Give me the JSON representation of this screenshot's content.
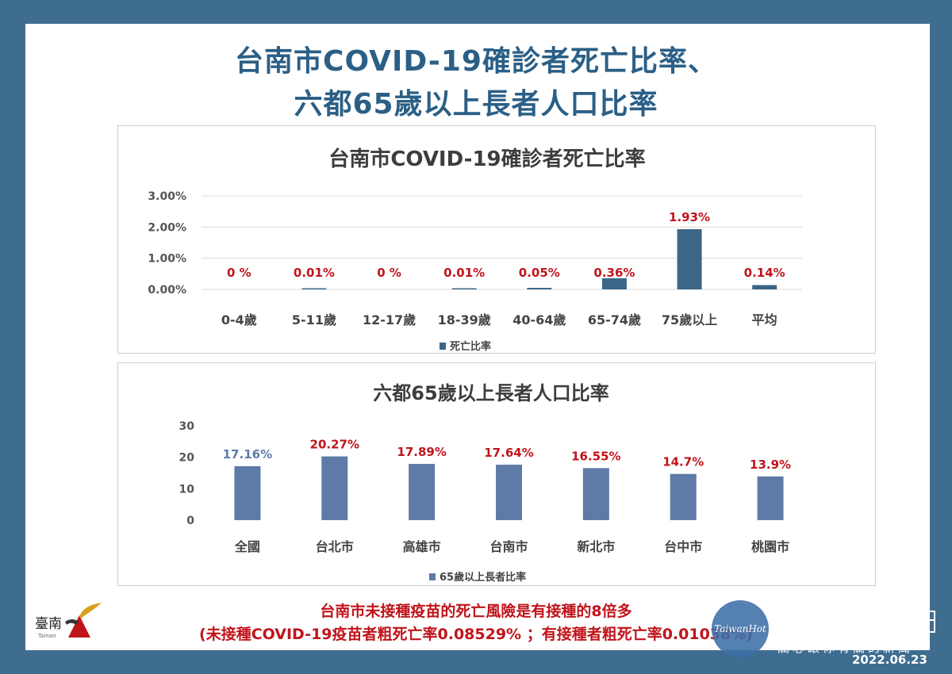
{
  "header": {
    "title_line1": "台南市COVID-19確診者死亡比率、",
    "title_line2": "六都65歲以上長者人口比率"
  },
  "chart_data": [
    {
      "type": "bar",
      "title": "台南市COVID-19確診者死亡比率",
      "categories": [
        "0-4歲",
        "5-11歲",
        "12-17歲",
        "18-39歲",
        "40-64歲",
        "65-74歲",
        "75歲以上",
        "平均"
      ],
      "series": [
        {
          "name": "死亡比率",
          "values": [
            0,
            0.01,
            0,
            0.01,
            0.05,
            0.36,
            1.93,
            0.14
          ]
        }
      ],
      "data_labels": [
        "0 %",
        "0.01%",
        "0 %",
        "0.01%",
        "0.05%",
        "0.36%",
        "1.93%",
        "0.14%"
      ],
      "yticks": [
        "3.00%",
        "2.00%",
        "1.00%",
        "0.00%"
      ],
      "ylim": [
        0,
        3
      ],
      "grid": true,
      "legend": "bottom",
      "bar_color": "#3c6687",
      "label_color": "#c0141b"
    },
    {
      "type": "bar",
      "title": "六都65歲以上長者人口比率",
      "categories": [
        "全國",
        "台北市",
        "高雄市",
        "台南市",
        "新北市",
        "台中市",
        "桃園市"
      ],
      "series": [
        {
          "name": "65歲以上長者比率",
          "values": [
            17.16,
            20.27,
            17.89,
            17.64,
            16.55,
            14.7,
            13.9
          ]
        }
      ],
      "data_labels": [
        "17.16%",
        "20.27%",
        "17.89%",
        "17.64%",
        "16.55%",
        "14.7%",
        "13.9%"
      ],
      "yticks": [
        "30",
        "20",
        "10",
        "0"
      ],
      "ylim": [
        0,
        30
      ],
      "grid": false,
      "legend": "bottom",
      "bar_color": "#5d7ba6",
      "label_colors": [
        "#5d7ba6",
        "#c0141b",
        "#c0141b",
        "#c0141b",
        "#c0141b",
        "#c0141b",
        "#c0141b"
      ]
    }
  ],
  "notes": {
    "line1": "台南市未接種疫苗的死亡風險是有接種的8倍多",
    "line2": "(未接種COVID-19疫苗者粗死亡率0.08529% ；有接種者粗死亡率0.01038%)"
  },
  "logo": {
    "text": "臺南",
    "sub": "Tainan"
  },
  "watermark": {
    "brand": "TaiwanHot",
    "slogan": "關心跟你有關的新聞"
  },
  "date": "2022.06.23"
}
